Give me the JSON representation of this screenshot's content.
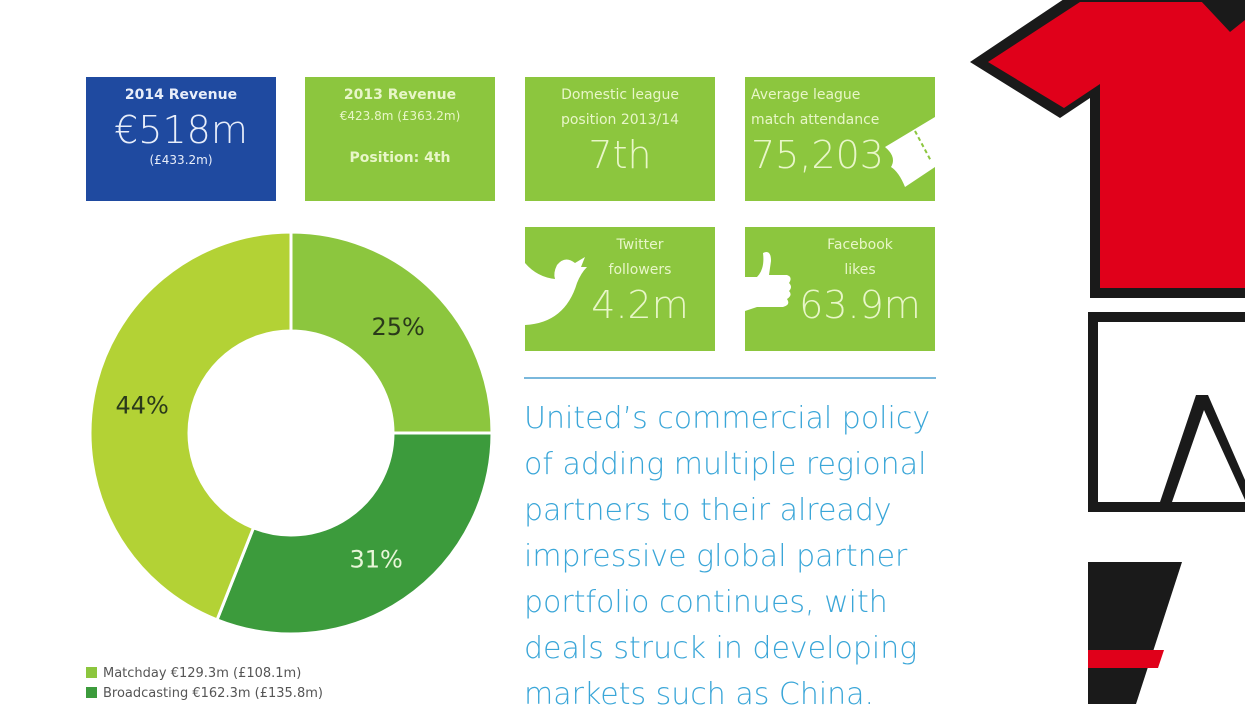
{
  "tiles": {
    "rev2014": {
      "label": "2014 Revenue",
      "value": "€518m",
      "sub": "(£433.2m)"
    },
    "rev2013": {
      "label": "2013 Revenue",
      "sub": "€423.8m (£363.2m)",
      "position": "Position: 4th"
    },
    "league": {
      "label1": "Domestic league",
      "label2": "position 2013/14",
      "value": "7th"
    },
    "attendance": {
      "label1": "Average league",
      "label2": "match attendance",
      "value": "75,203",
      "icon": "ticket-icon"
    },
    "twitter": {
      "label1": "Twitter",
      "label2": "followers",
      "value": "4.2m",
      "icon": "twitter-bird-icon"
    },
    "facebook": {
      "label1": "Facebook",
      "label2": "likes",
      "value": "63.9m",
      "icon": "thumbs-up-icon"
    }
  },
  "colors": {
    "blue": "#1f4aa0",
    "green": "#8cc63e",
    "dark_green": "#3c9b3c",
    "yellow_green": "#b3d235",
    "quote": "#3aa6d8",
    "shirt_red": "#e0001a"
  },
  "chart_data": {
    "type": "pie",
    "donut": true,
    "slices": [
      {
        "label": "25%",
        "value": 25,
        "color": "#8cc63e"
      },
      {
        "label": "31%",
        "value": 31,
        "color": "#3c9b3c"
      },
      {
        "label": "44%",
        "value": 44,
        "color": "#b3d235"
      }
    ],
    "legend": [
      {
        "text": "Matchday €129.3m (£108.1m)",
        "color": "#8cc63e"
      },
      {
        "text": "Broadcasting €162.3m (£135.8m)",
        "color": "#3c9b3c"
      }
    ],
    "legend_placement": "bottom-left"
  },
  "quote": "United’s commercial policy of adding multiple regional partners to their already impressive global partner portfolio continues, with deals struck in developing markets such as China."
}
